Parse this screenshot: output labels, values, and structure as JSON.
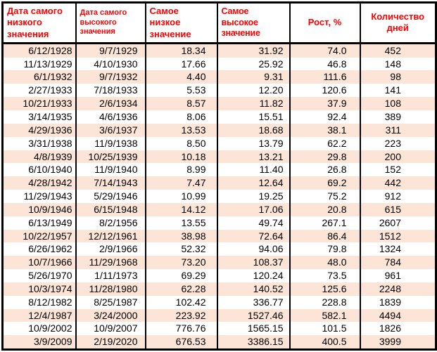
{
  "colors": {
    "row_stripe": "#fce4d6",
    "header_text": "#ff0000",
    "cell_text": "#000000",
    "border": "#000000",
    "background": "#ffffff"
  },
  "chart_data": {
    "type": "table",
    "title": "",
    "legend": "none",
    "grid": "vertical-borders-only, striped rows",
    "columns": [
      "Дата самого\nнизкого значения",
      "Дата самого\nвысокого значения",
      "Самое\nнизкое значение",
      "Самое\nвысокое значение",
      "Рост, %",
      "Количество дней"
    ],
    "rows": [
      [
        "6/12/1928",
        "9/7/1929",
        "18.34",
        "31.92",
        "74.0",
        "452"
      ],
      [
        "11/13/1929",
        "4/10/1930",
        "17.66",
        "25.92",
        "46.8",
        "148"
      ],
      [
        "6/1/1932",
        "9/7/1932",
        "4.40",
        "9.31",
        "111.6",
        "98"
      ],
      [
        "2/27/1933",
        "7/18/1933",
        "5.53",
        "12.20",
        "120.6",
        "141"
      ],
      [
        "10/21/1933",
        "2/6/1934",
        "8.57",
        "11.82",
        "37.9",
        "108"
      ],
      [
        "3/14/1935",
        "4/6/1936",
        "8.06",
        "15.51",
        "92.4",
        "389"
      ],
      [
        "4/29/1936",
        "3/6/1937",
        "13.53",
        "18.68",
        "38.1",
        "311"
      ],
      [
        "3/31/1938",
        "11/9/1938",
        "8.50",
        "13.79",
        "62.2",
        "223"
      ],
      [
        "4/8/1939",
        "10/25/1939",
        "10.18",
        "13.21",
        "29.8",
        "200"
      ],
      [
        "6/10/1940",
        "11/9/1940",
        "8.99",
        "11.40",
        "26.8",
        "152"
      ],
      [
        "4/28/1942",
        "7/14/1943",
        "7.47",
        "12.64",
        "69.2",
        "442"
      ],
      [
        "11/29/1943",
        "5/29/1946",
        "10.99",
        "19.25",
        "75.2",
        "912"
      ],
      [
        "10/9/1946",
        "6/15/1948",
        "14.12",
        "17.06",
        "20.8",
        "615"
      ],
      [
        "6/13/1949",
        "8/2/1956",
        "13.55",
        "49.74",
        "267.1",
        "2607"
      ],
      [
        "10/22/1957",
        "12/12/1961",
        "38.98",
        "72.64",
        "86.4",
        "1512"
      ],
      [
        "6/26/1962",
        "2/9/1966",
        "52.32",
        "94.06",
        "79.8",
        "1324"
      ],
      [
        "10/7/1966",
        "11/29/1968",
        "73.20",
        "108.37",
        "48.0",
        "784"
      ],
      [
        "5/26/1970",
        "1/11/1973",
        "69.29",
        "120.24",
        "73.5",
        "961"
      ],
      [
        "10/3/1974",
        "11/28/1980",
        "62.28",
        "140.52",
        "125.6",
        "2248"
      ],
      [
        "8/12/1982",
        "8/25/1987",
        "102.42",
        "336.77",
        "228.8",
        "1839"
      ],
      [
        "12/4/1987",
        "3/24/2000",
        "223.92",
        "1527.46",
        "582.1",
        "4494"
      ],
      [
        "10/9/2002",
        "10/9/2007",
        "776.76",
        "1565.15",
        "101.5",
        "1826"
      ],
      [
        "3/9/2009",
        "2/19/2020",
        "676.53",
        "3386.15",
        "400.5",
        "3999"
      ]
    ]
  }
}
